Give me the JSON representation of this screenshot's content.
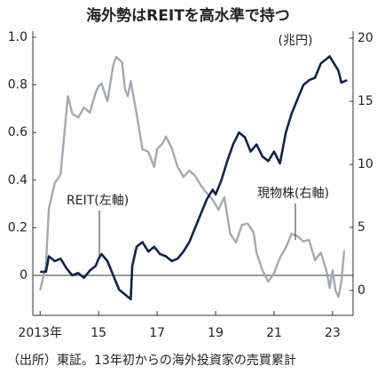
{
  "chart_data": {
    "type": "line",
    "title": "海外勢はREITを高水準で持つ",
    "y2_label": "(兆円)",
    "footnote": "（出所）東証。13年初からの海外投資家の売買累計",
    "xlim": [
      2012.75,
      2023.7
    ],
    "xticks": [
      {
        "value": 2013,
        "label": "2013年"
      },
      {
        "value": 2015,
        "label": "15"
      },
      {
        "value": 2017,
        "label": "17"
      },
      {
        "value": 2019,
        "label": "19"
      },
      {
        "value": 2021,
        "label": "21"
      },
      {
        "value": 2023,
        "label": "23"
      }
    ],
    "ylim": [
      -0.168,
      1.026
    ],
    "yticks": [
      0,
      0.2,
      0.4,
      0.6,
      0.8,
      {
        "value": 1,
        "label": "1.0"
      }
    ],
    "y2lim": [
      -1.97,
      20.56
    ],
    "y2ticks": [
      0,
      5,
      10,
      15,
      20
    ],
    "series": [
      {
        "name": "REIT(左軸)",
        "color": "#0d2352",
        "axis": "y",
        "x": [
          2013.0,
          2013.2,
          2013.3,
          2013.5,
          2013.7,
          2013.9,
          2014.1,
          2014.3,
          2014.5,
          2014.7,
          2014.9,
          2015.0,
          2015.1,
          2015.3,
          2015.5,
          2015.7,
          2015.9,
          2016.0,
          2016.1,
          2016.15,
          2016.3,
          2016.5,
          2016.7,
          2016.9,
          2017.1,
          2017.3,
          2017.5,
          2017.7,
          2017.9,
          2018.1,
          2018.3,
          2018.5,
          2018.7,
          2018.9,
          2019.0,
          2019.2,
          2019.4,
          2019.6,
          2019.8,
          2020.0,
          2020.2,
          2020.4,
          2020.6,
          2020.8,
          2021.0,
          2021.2,
          2021.4,
          2021.6,
          2021.8,
          2022.0,
          2022.2,
          2022.4,
          2022.6,
          2022.8,
          2022.9,
          2023.0,
          2023.2,
          2023.3,
          2023.5
        ],
        "values": [
          0.015,
          0.015,
          0.08,
          0.06,
          0.07,
          0.03,
          0.0,
          0.01,
          -0.01,
          0.02,
          0.04,
          0.07,
          0.09,
          0.06,
          0.0,
          -0.06,
          -0.08,
          -0.09,
          -0.1,
          0.04,
          0.12,
          0.14,
          0.1,
          0.12,
          0.09,
          0.08,
          0.06,
          0.07,
          0.1,
          0.14,
          0.2,
          0.26,
          0.32,
          0.36,
          0.34,
          0.4,
          0.48,
          0.55,
          0.6,
          0.58,
          0.52,
          0.55,
          0.5,
          0.48,
          0.52,
          0.47,
          0.6,
          0.68,
          0.74,
          0.8,
          0.82,
          0.83,
          0.89,
          0.91,
          0.92,
          0.9,
          0.86,
          0.81,
          0.82
        ]
      },
      {
        "name": "現物株(右軸)",
        "color": "#a3a8b2",
        "axis": "y2",
        "x": [
          2013.0,
          2013.2,
          2013.3,
          2013.5,
          2013.7,
          2013.85,
          2013.95,
          2014.1,
          2014.3,
          2014.5,
          2014.7,
          2014.9,
          2015.0,
          2015.1,
          2015.3,
          2015.5,
          2015.6,
          2015.8,
          2015.9,
          2016.0,
          2016.1,
          2016.3,
          2016.5,
          2016.7,
          2016.9,
          2017.0,
          2017.2,
          2017.3,
          2017.5,
          2017.7,
          2017.9,
          2018.1,
          2018.3,
          2018.5,
          2018.7,
          2018.9,
          2019.1,
          2019.3,
          2019.5,
          2019.7,
          2019.9,
          2020.1,
          2020.3,
          2020.4,
          2020.6,
          2020.8,
          2021.0,
          2021.2,
          2021.4,
          2021.6,
          2021.8,
          2022.0,
          2022.2,
          2022.4,
          2022.6,
          2022.8,
          2022.9,
          2023.0,
          2023.1,
          2023.2,
          2023.3,
          2023.4
        ],
        "values": [
          0,
          2,
          6.5,
          8.5,
          9.2,
          13,
          15.4,
          14,
          13.7,
          14.5,
          14.1,
          15.7,
          16.2,
          16.4,
          15,
          17.9,
          18.5,
          18.1,
          16,
          15.4,
          16.6,
          14,
          11.2,
          11,
          9.8,
          11.2,
          11.7,
          12.2,
          11.3,
          9.8,
          9,
          9.5,
          9.1,
          8.3,
          7.7,
          7.2,
          6.4,
          7.4,
          4.5,
          3.8,
          5.2,
          5.3,
          4.6,
          3.0,
          1.6,
          0.7,
          1.4,
          2.6,
          3.4,
          4.5,
          4.3,
          3.9,
          4.0,
          2.4,
          3.0,
          1.5,
          0.2,
          1.6,
          0.0,
          -0.5,
          0.7,
          3.2
        ]
      }
    ]
  }
}
